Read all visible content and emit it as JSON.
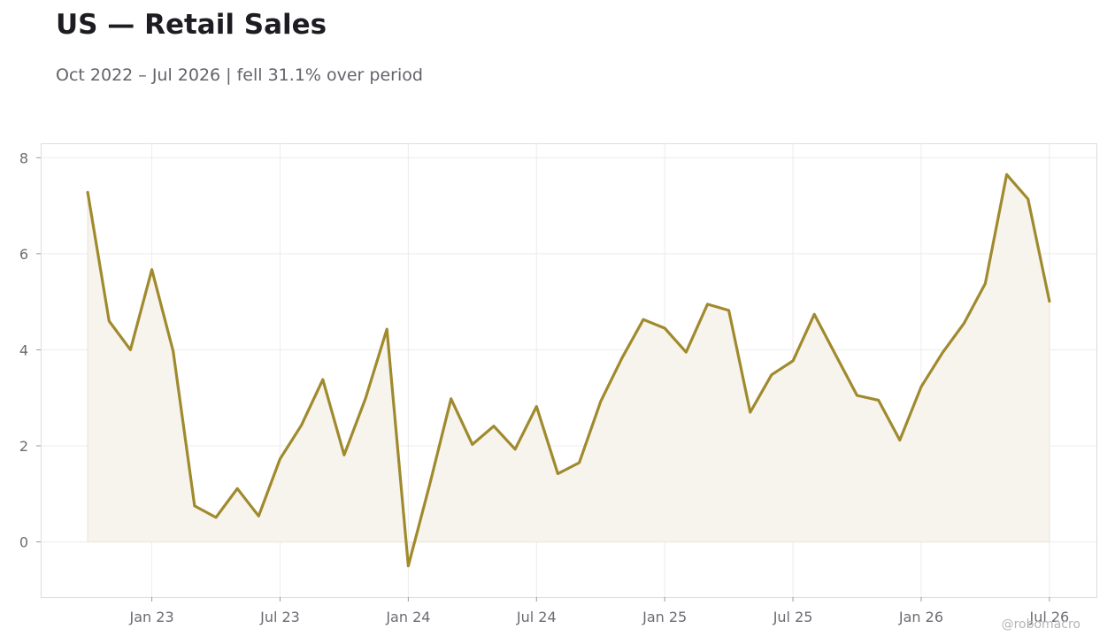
{
  "title": "US — Retail Sales",
  "subtitle": "Oct 2022 – Jul 2026 | fell 31.1% over period",
  "watermark": "@robomacro",
  "colors": {
    "line": "#a08a2e",
    "fill": "#f7f4ed",
    "grid": "#ececec",
    "frame": "#dcdcdc"
  },
  "chart_data": {
    "type": "area",
    "title": "US — Retail Sales",
    "subtitle": "Oct 2022 – Jul 2026 | fell 31.1% over period",
    "xlabel": "",
    "ylabel": "",
    "x": [
      "2022-10",
      "2022-11",
      "2022-12",
      "2023-01",
      "2023-02",
      "2023-03",
      "2023-04",
      "2023-05",
      "2023-06",
      "2023-07",
      "2023-08",
      "2023-09",
      "2023-10",
      "2023-11",
      "2023-12",
      "2024-01",
      "2024-02",
      "2024-03",
      "2024-04",
      "2024-05",
      "2024-06",
      "2024-07",
      "2024-08",
      "2024-09",
      "2024-10",
      "2024-11",
      "2024-12",
      "2025-01",
      "2025-02",
      "2025-03",
      "2025-04",
      "2025-05",
      "2025-06",
      "2025-07",
      "2025-08",
      "2025-09",
      "2025-10",
      "2025-11",
      "2025-12",
      "2026-01",
      "2026-02",
      "2026-03",
      "2026-04",
      "2026-05",
      "2026-06",
      "2026-07"
    ],
    "series": [
      {
        "values": [
          7.28,
          4.6,
          4.0,
          5.67,
          3.97,
          0.75,
          0.51,
          1.11,
          0.54,
          1.73,
          2.43,
          3.38,
          1.81,
          2.99,
          4.43,
          -0.5,
          1.19,
          2.98,
          2.03,
          2.41,
          1.93,
          2.82,
          1.42,
          1.65,
          2.92,
          3.83,
          4.63,
          4.45,
          3.95,
          4.95,
          4.82,
          2.7,
          3.48,
          3.77,
          4.74,
          3.89,
          3.05,
          2.95,
          2.12,
          3.23,
          3.94,
          4.55,
          5.38,
          7.65,
          7.14,
          5.01
        ]
      }
    ],
    "x_ticks": [
      "Jan 23",
      "Jul 23",
      "Jan 24",
      "Jul 24",
      "Jan 25",
      "Jul 25",
      "Jan 26",
      "Jul 26"
    ],
    "x_tick_dates": [
      "2023-01",
      "2023-07",
      "2024-01",
      "2024-07",
      "2025-01",
      "2025-07",
      "2026-01",
      "2026-07"
    ],
    "y_ticks": [
      0,
      2,
      4,
      6,
      8
    ],
    "ylim": [
      -1.15,
      8.3
    ],
    "grid": true,
    "legend": "none"
  }
}
